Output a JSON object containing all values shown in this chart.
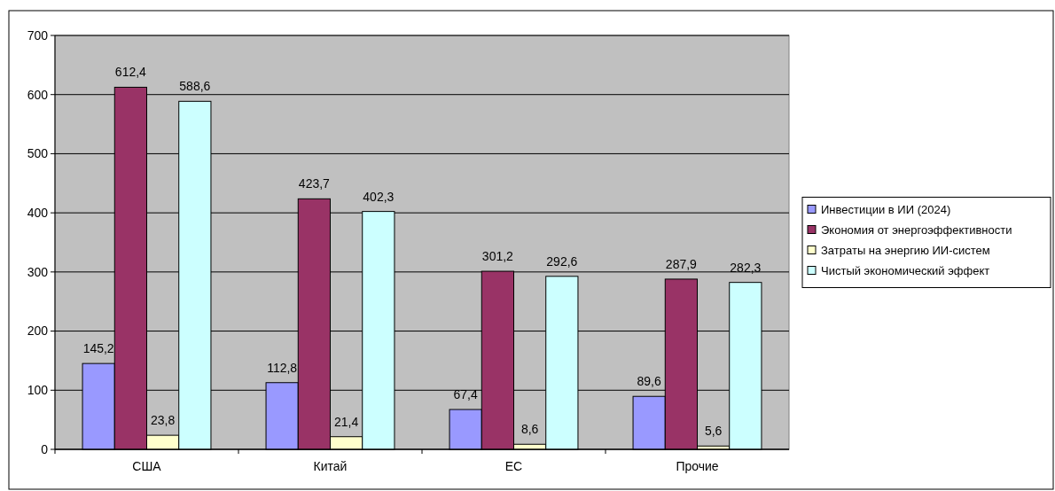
{
  "chart_data": {
    "type": "bar",
    "categories": [
      "США",
      "Китай",
      "ЕС",
      "Прочие"
    ],
    "series": [
      {
        "name": "Инвестиции в ИИ (2024)",
        "color": "#9999ff",
        "values": [
          145.2,
          112.8,
          67.4,
          89.6
        ],
        "value_labels": [
          "145,2",
          "112,8",
          "67,4",
          "89,6"
        ]
      },
      {
        "name": "Экономия от энергоэффективности",
        "color": "#993366",
        "values": [
          612.4,
          423.7,
          301.2,
          287.9
        ],
        "value_labels": [
          "612,4",
          "423,7",
          "301,2",
          "287,9"
        ]
      },
      {
        "name": "Затраты на энергию ИИ-систем",
        "color": "#ffffcc",
        "values": [
          23.8,
          21.4,
          8.6,
          5.6
        ],
        "value_labels": [
          "23,8",
          "21,4",
          "8,6",
          "5,6"
        ]
      },
      {
        "name": "Чистый экономический эффект",
        "color": "#ccffff",
        "values": [
          588.6,
          402.3,
          292.6,
          282.3
        ],
        "value_labels": [
          "588,6",
          "402,3",
          "292,6",
          "282,3"
        ]
      }
    ],
    "ylim": [
      0,
      700
    ],
    "yticks": [
      0,
      100,
      200,
      300,
      400,
      500,
      600,
      700
    ],
    "grid": "y",
    "legend": "right"
  }
}
